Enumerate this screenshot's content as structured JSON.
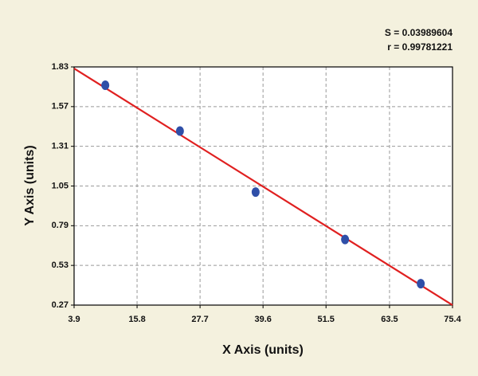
{
  "chart_data": {
    "type": "scatter",
    "x_label": "X Axis (units)",
    "y_label": "Y Axis (units)",
    "annotations": [
      "S = 0.03989604",
      "r = 0.99781221"
    ],
    "xlim": [
      3.9,
      75.4
    ],
    "xticks": [
      3.9,
      15.8,
      27.7,
      39.6,
      51.5,
      63.5,
      75.4
    ],
    "ylim": [
      0.27,
      1.83
    ],
    "yticks": [
      0.27,
      0.53,
      0.79,
      1.05,
      1.31,
      1.57,
      1.83
    ],
    "grid": true,
    "series": [
      {
        "color": "#2f4fa8",
        "x": [
          9.8,
          23.9,
          38.2,
          55.1,
          69.4
        ],
        "values": [
          1.71,
          1.41,
          1.01,
          0.7,
          0.41
        ]
      }
    ],
    "fit": {
      "color": "#e02020",
      "x": [
        3.9,
        75.4
      ],
      "values": [
        1.82,
        0.27
      ]
    }
  }
}
